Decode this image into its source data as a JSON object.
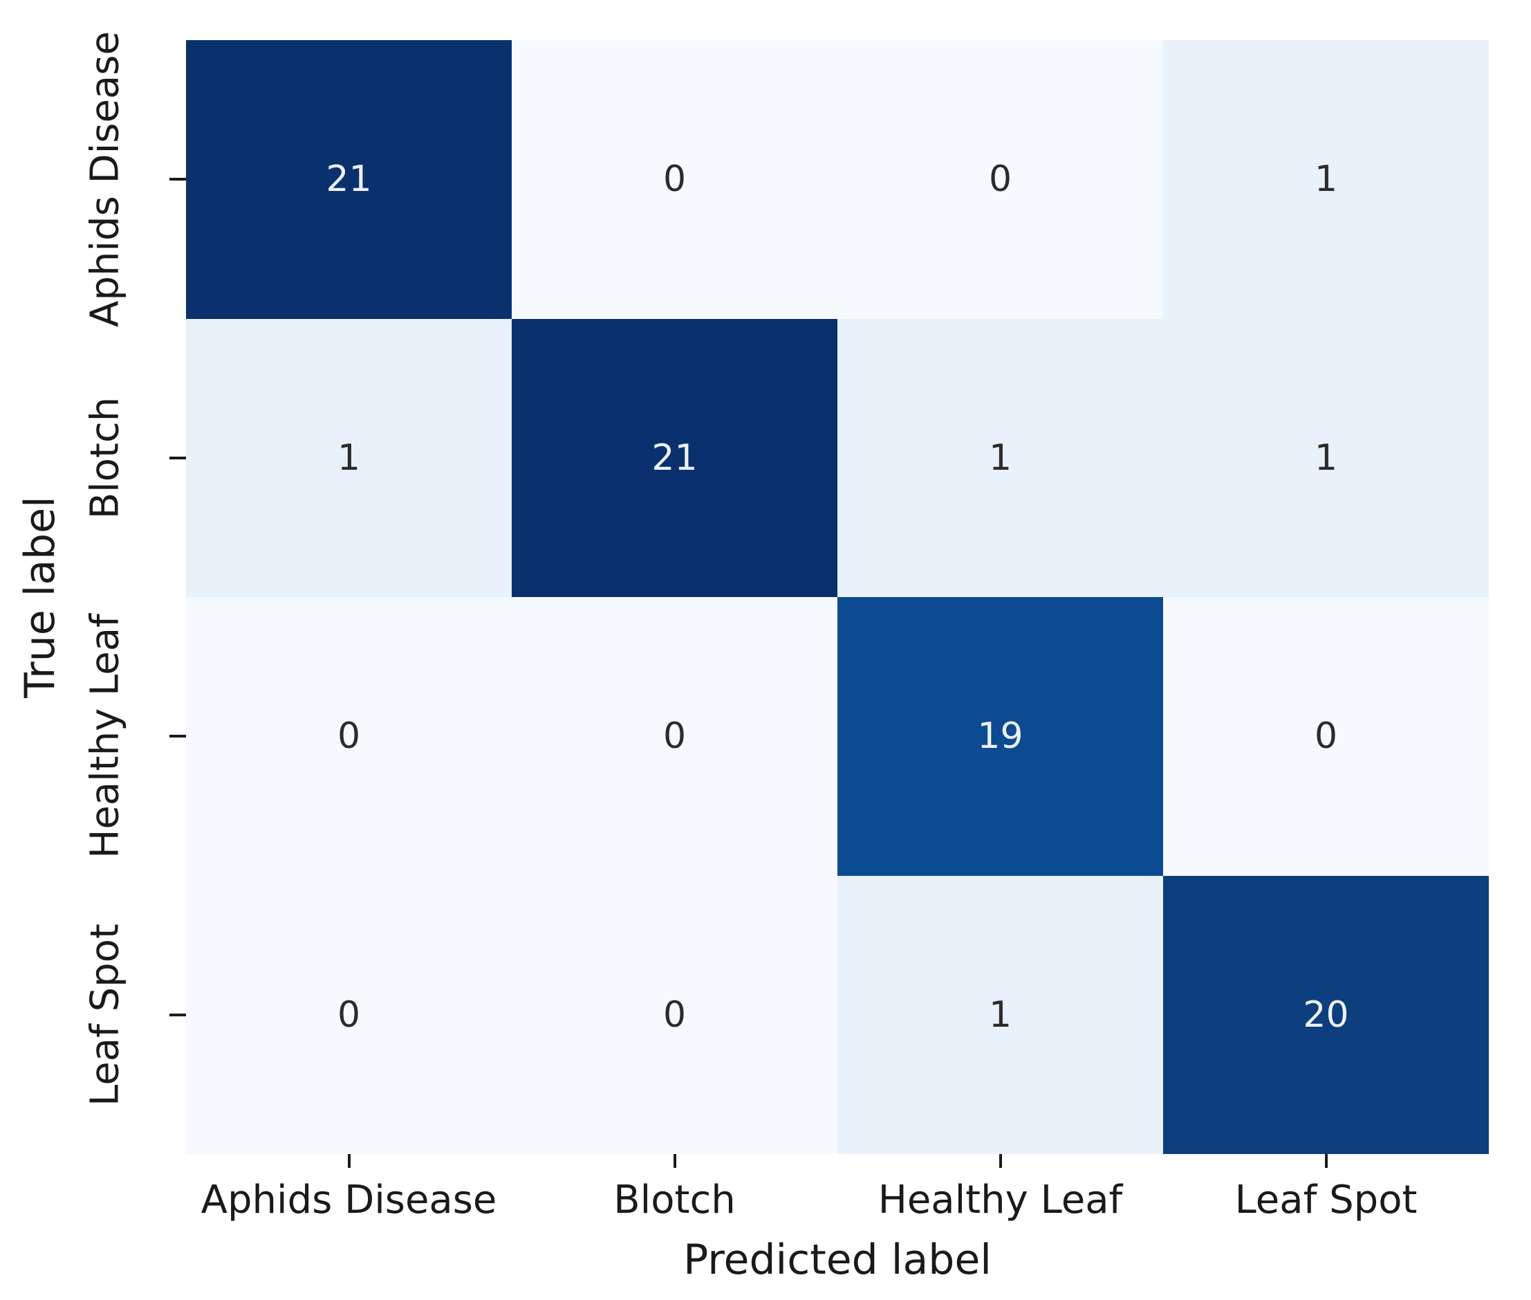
{
  "chart_data": {
    "type": "heatmap",
    "title": "",
    "xlabel": "Predicted label",
    "ylabel": "True label",
    "x_tick_labels": [
      "Aphids Disease",
      "Blotch",
      "Healthy Leaf",
      "Leaf Spot"
    ],
    "y_tick_labels": [
      "Aphids Disease",
      "Blotch",
      "Healthy Leaf",
      "Leaf Spot"
    ],
    "matrix": [
      [
        21,
        0,
        0,
        1
      ],
      [
        1,
        21,
        1,
        1
      ],
      [
        0,
        0,
        19,
        0
      ],
      [
        0,
        0,
        1,
        20
      ]
    ],
    "colormap": "Blues",
    "vmin": 0,
    "vmax": 21,
    "legend": "none",
    "grid": false,
    "colors": {
      "background": "#ffffff",
      "tick_and_label_text": "#1a1a1a",
      "annot_on_light": "#2b2b2b",
      "annot_on_dark": "#edf1f8",
      "value_bg": {
        "0": "#f6fafe",
        "1": "#e9f1fa",
        "19": "#0c4b92",
        "20": "#0d3e7d",
        "21": "#0a316e"
      },
      "dark_values": [
        19,
        20,
        21
      ]
    }
  }
}
